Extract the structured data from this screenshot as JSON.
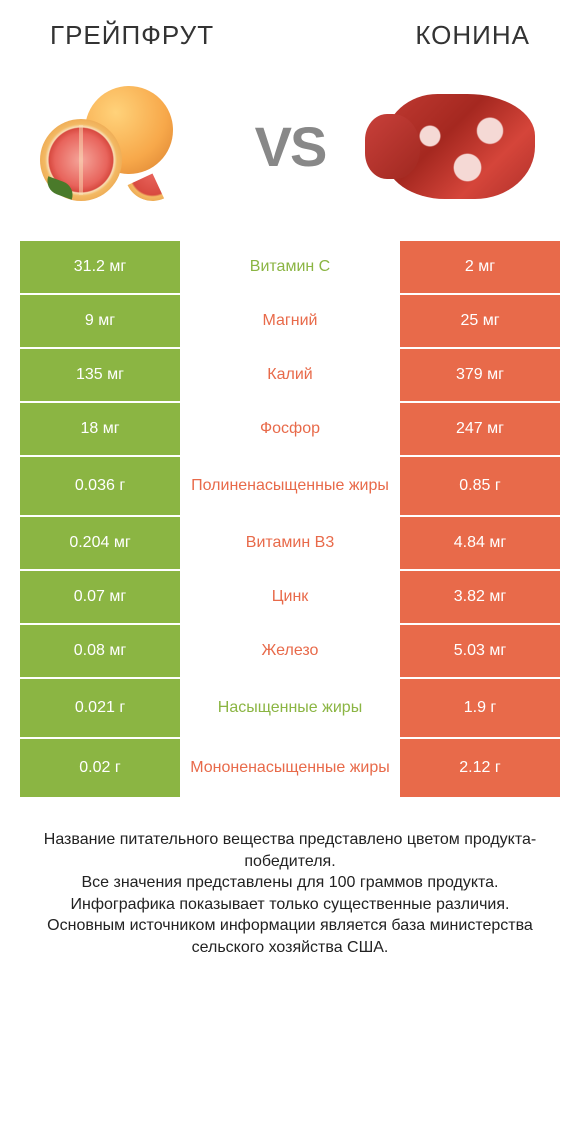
{
  "colors": {
    "green": "#8bb543",
    "orange": "#e86a4a",
    "green_text": "#8bb543",
    "orange_text": "#e86a4a",
    "white": "#ffffff",
    "title_color": "#333333",
    "vs_color": "#888888",
    "footnote_color": "#222222"
  },
  "titles": {
    "left": "ГРЕЙПФРУТ",
    "right": "КОНИНА"
  },
  "vs_label": "VS",
  "table": {
    "rows": [
      {
        "left": "31.2 мг",
        "mid": "Витамин C",
        "right": "2 мг",
        "winner": "left",
        "tall": false
      },
      {
        "left": "9 мг",
        "mid": "Магний",
        "right": "25 мг",
        "winner": "right",
        "tall": false
      },
      {
        "left": "135 мг",
        "mid": "Калий",
        "right": "379 мг",
        "winner": "right",
        "tall": false
      },
      {
        "left": "18 мг",
        "mid": "Фосфор",
        "right": "247 мг",
        "winner": "right",
        "tall": false
      },
      {
        "left": "0.036 г",
        "mid": "Полиненасыщенные жиры",
        "right": "0.85 г",
        "winner": "right",
        "tall": true
      },
      {
        "left": "0.204 мг",
        "mid": "Витамин B3",
        "right": "4.84 мг",
        "winner": "right",
        "tall": false
      },
      {
        "left": "0.07 мг",
        "mid": "Цинк",
        "right": "3.82 мг",
        "winner": "right",
        "tall": false
      },
      {
        "left": "0.08 мг",
        "mid": "Железо",
        "right": "5.03 мг",
        "winner": "right",
        "tall": false
      },
      {
        "left": "0.021 г",
        "mid": "Насыщенные жиры",
        "right": "1.9 г",
        "winner": "left",
        "tall": true
      },
      {
        "left": "0.02 г",
        "mid": "Мононенасыщенные жиры",
        "right": "2.12 г",
        "winner": "right",
        "tall": true
      }
    ]
  },
  "footnote": "Название питательного вещества представлено цветом продукта-победителя.\nВсе значения представлены для 100 граммов продукта.\nИнфографика показывает только существенные различия.\nОсновным источником информации является база министерства сельского хозяйства США."
}
